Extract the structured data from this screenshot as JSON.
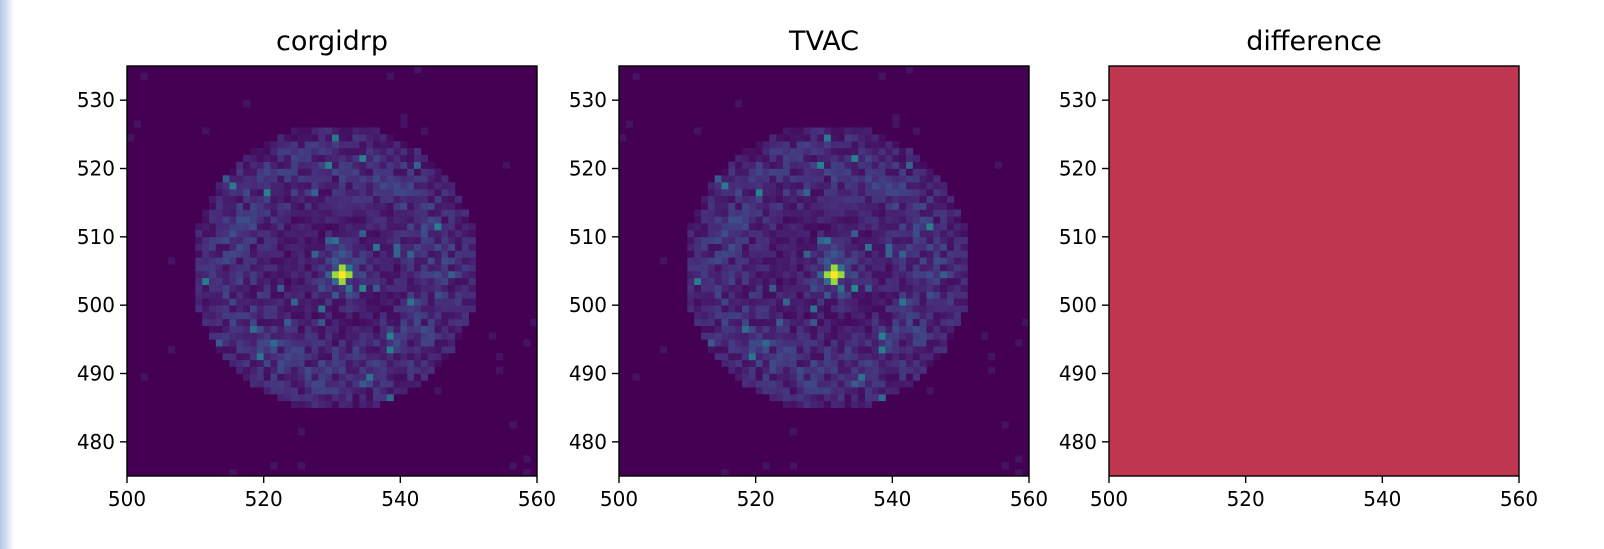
{
  "chart_data": [
    {
      "type": "heatmap",
      "title": "corgidrp",
      "xlim": [
        500,
        560
      ],
      "ylim": [
        475,
        535
      ],
      "xticks": [
        500,
        520,
        540,
        560
      ],
      "yticks": [
        480,
        490,
        500,
        510,
        520,
        530
      ],
      "colormap": "viridis",
      "peak": {
        "x": 531,
        "y": 504
      }
    },
    {
      "type": "heatmap",
      "title": "TVAC",
      "xlim": [
        500,
        560
      ],
      "ylim": [
        475,
        535
      ],
      "xticks": [
        500,
        520,
        540,
        560
      ],
      "yticks": [
        480,
        490,
        500,
        510,
        520,
        530
      ],
      "colormap": "viridis",
      "peak": {
        "x": 531,
        "y": 504
      }
    },
    {
      "type": "heatmap",
      "title": "difference",
      "xlim": [
        500,
        560
      ],
      "ylim": [
        475,
        535
      ],
      "xticks": [
        500,
        520,
        540,
        560
      ],
      "yticks": [
        480,
        490,
        500,
        510,
        520,
        530
      ],
      "uniform_value": 0,
      "fill_color": "#bf3650"
    }
  ],
  "colors": {
    "background_low": "#440154",
    "viridis": [
      "#440154",
      "#472d7b",
      "#3b528b",
      "#2c728e",
      "#21918c",
      "#28ae80",
      "#5ec962",
      "#addc30",
      "#fde725"
    ],
    "difference_fill": "#bf3650"
  }
}
